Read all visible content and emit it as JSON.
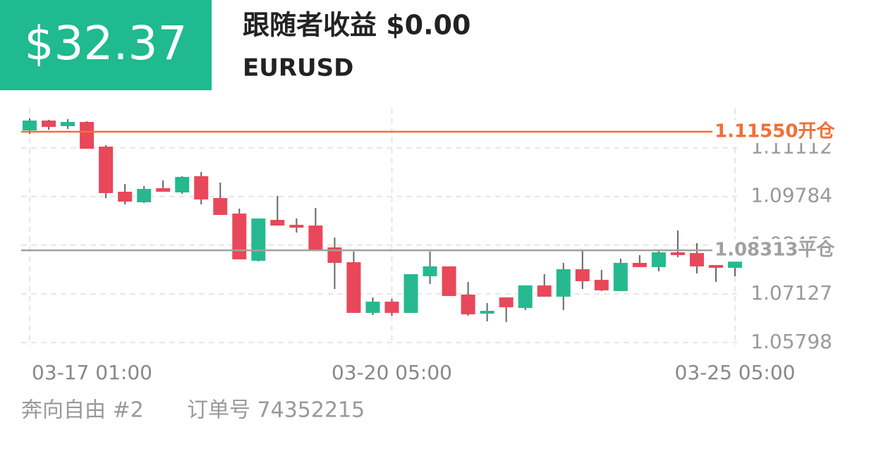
{
  "header": {
    "amount": "$32.37",
    "title": "跟随者收益 $0.00",
    "symbol": "EURUSD"
  },
  "chart_data": {
    "type": "candlestick",
    "categories": [
      "03-17 01:00",
      null,
      null,
      null,
      null,
      null,
      null,
      null,
      null,
      null,
      null,
      null,
      null,
      null,
      null,
      null,
      null,
      null,
      null,
      "03-20 05:00",
      null,
      null,
      null,
      null,
      null,
      null,
      null,
      null,
      null,
      null,
      null,
      null,
      null,
      null,
      null,
      null,
      null,
      "03-25 05:00"
    ],
    "open": [
      1.11586,
      1.11855,
      1.11702,
      1.11817,
      1.11144,
      1.09913,
      1.09625,
      1.10009,
      1.09894,
      1.10336,
      1.0974,
      1.09317,
      1.08029,
      1.09144,
      1.09009,
      1.0899,
      1.08394,
      1.0799,
      1.06606,
      1.06913,
      1.06606,
      1.07606,
      1.07875,
      1.07106,
      1.06586,
      1.07029,
      1.0674,
      1.07356,
      1.07048,
      1.07798,
      1.07509,
      1.07202,
      1.07971,
      1.07856,
      1.08259,
      1.0824,
      1.07913,
      1.07836
    ],
    "high": [
      1.11913,
      1.11875,
      1.11894,
      1.11836,
      1.11182,
      1.10125,
      1.10067,
      1.10221,
      1.10336,
      1.10452,
      1.10163,
      1.09452,
      1.09182,
      1.09798,
      1.09182,
      1.09471,
      1.08663,
      1.08279,
      1.07029,
      1.0699,
      1.07663,
      1.08279,
      1.07875,
      1.07452,
      1.06875,
      1.07029,
      1.07356,
      1.07663,
      1.07971,
      1.08298,
      1.07779,
      1.08086,
      1.08183,
      1.08298,
      1.08856,
      1.08509,
      1.07913,
      1.08009
    ],
    "low": [
      1.1149,
      1.11605,
      1.11625,
      1.11086,
      1.0974,
      1.09567,
      1.09606,
      1.09913,
      1.09856,
      1.09567,
      1.09279,
      1.08067,
      1.08009,
      1.0899,
      1.08798,
      1.08336,
      1.07259,
      1.06606,
      1.06548,
      1.06529,
      1.06606,
      1.07394,
      1.07067,
      1.06529,
      1.06375,
      1.06356,
      1.06683,
      1.07048,
      1.06683,
      1.07259,
      1.07202,
      1.07202,
      1.07856,
      1.0774,
      1.08125,
      1.07683,
      1.07452,
      1.07606
    ],
    "close": [
      1.11855,
      1.11682,
      1.11817,
      1.11086,
      1.09875,
      1.09644,
      1.0999,
      1.09913,
      1.10317,
      1.09702,
      1.09279,
      1.08067,
      1.09182,
      1.0899,
      1.08932,
      1.08336,
      1.07971,
      1.06606,
      1.06913,
      1.06606,
      1.07663,
      1.07875,
      1.07067,
      1.06567,
      1.06663,
      1.0676,
      1.07356,
      1.07048,
      1.07798,
      1.07471,
      1.07221,
      1.07971,
      1.07856,
      1.08259,
      1.08183,
      1.07875,
      1.07836,
      1.08009
    ],
    "up_color": "#26b98f",
    "down_color": "#e8485a",
    "ylim": [
      1.057,
      1.12
    ],
    "yticks": [
      1.05798,
      1.07127,
      1.08456,
      1.09784,
      1.11112
    ],
    "grid": true,
    "reference_lines": [
      {
        "value": 1.1155,
        "label": "1.11550开仓",
        "color": "#f07038"
      },
      {
        "value": 1.08313,
        "label": "1.08313平仓",
        "color": "#a0a0a0"
      }
    ]
  },
  "footer": {
    "name": "奔向自由 #2",
    "order": "订单号 74352215"
  }
}
